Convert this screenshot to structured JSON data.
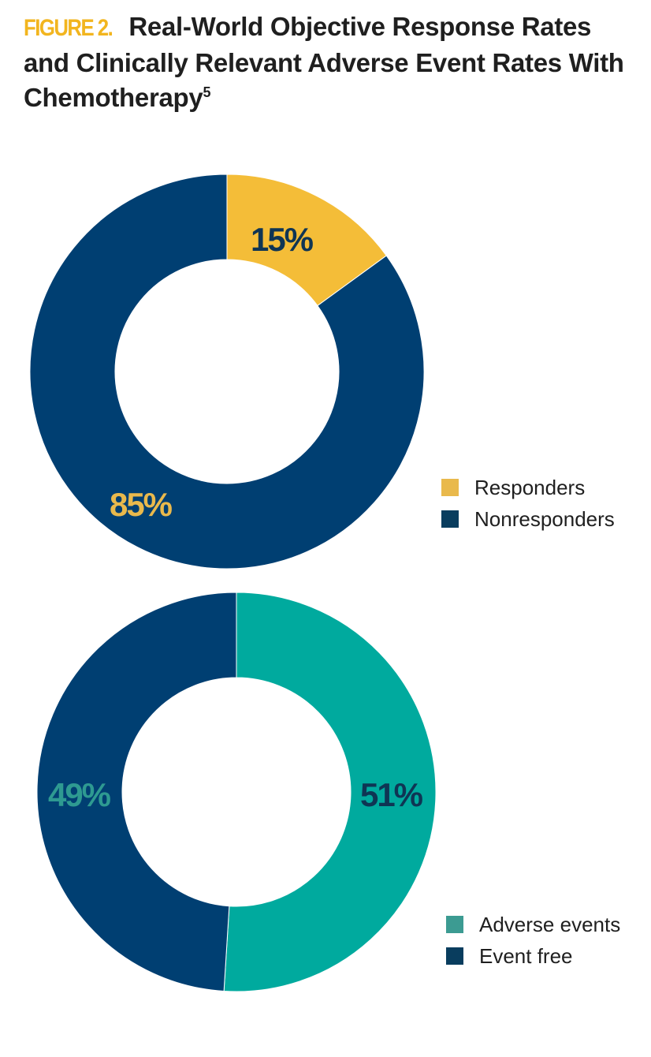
{
  "figure": {
    "label": "FIGURE 2.",
    "title": "Real-World Objective Response Rates and Clinically Relevant Adverse Event Rates With Chemotherapy",
    "superscript": "5"
  },
  "colors": {
    "gold": "#f4bd38",
    "navy": "#003f72",
    "teal": "#00aa9e",
    "teal_label": "#2e9a91",
    "legend_gold": "#e9b94c",
    "legend_navy": "#093d5e",
    "legend_teal": "#3c9b92",
    "legend_navy2": "#093d5e"
  },
  "chart_data": [
    {
      "type": "pie",
      "style": "donut",
      "title": "",
      "slices": [
        {
          "name": "Responders",
          "value": 15,
          "label": "15%",
          "color": "#f4bd38",
          "label_color": "#0f3554"
        },
        {
          "name": "Nonresponders",
          "value": 85,
          "label": "85%",
          "color": "#003f72",
          "label_color": "#e9b94c"
        }
      ],
      "legend": [
        "Responders",
        "Nonresponders"
      ],
      "legend_position": "right-bottom"
    },
    {
      "type": "pie",
      "style": "donut",
      "title": "",
      "slices": [
        {
          "name": "Adverse events",
          "value": 51,
          "label": "51%",
          "color": "#00aa9e",
          "label_color": "#0f3554"
        },
        {
          "name": "Event free",
          "value": 49,
          "label": "49%",
          "color": "#003f72",
          "label_color": "#2e9a91"
        }
      ],
      "legend": [
        "Adverse events",
        "Event free"
      ],
      "legend_position": "right-bottom"
    }
  ]
}
